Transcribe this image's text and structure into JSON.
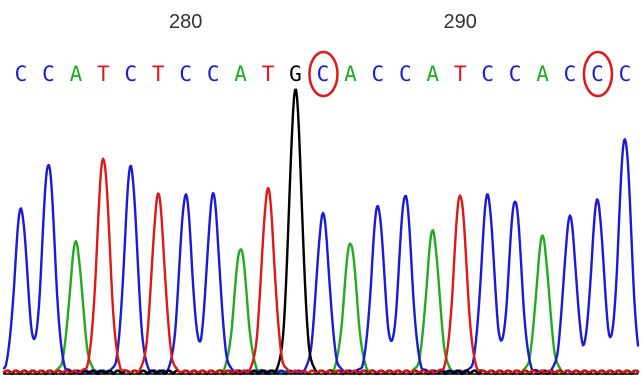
{
  "chart_data": {
    "type": "line",
    "title": "",
    "xlabel": "",
    "ylabel": "",
    "position_labels": [
      {
        "label": "280",
        "base_index": 6
      },
      {
        "label": "290",
        "base_index": 16
      }
    ],
    "bases": [
      "C",
      "C",
      "A",
      "T",
      "C",
      "T",
      "C",
      "C",
      "A",
      "T",
      "G",
      "C",
      "A",
      "C",
      "C",
      "A",
      "T",
      "C",
      "C",
      "A",
      "C",
      "C",
      "C"
    ],
    "circled_base_indices": [
      11,
      21
    ],
    "base_colors": {
      "A": "#22aa22",
      "C": "#1a1ad8",
      "G": "#000000",
      "T": "#e01818"
    },
    "peak_heights": [
      0.58,
      0.74,
      0.46,
      0.76,
      0.73,
      0.63,
      0.63,
      0.63,
      0.44,
      0.65,
      1.0,
      0.56,
      0.46,
      0.59,
      0.63,
      0.5,
      0.63,
      0.63,
      0.61,
      0.48,
      0.55,
      0.61,
      0.83
    ],
    "ylim": [
      0,
      1
    ]
  }
}
